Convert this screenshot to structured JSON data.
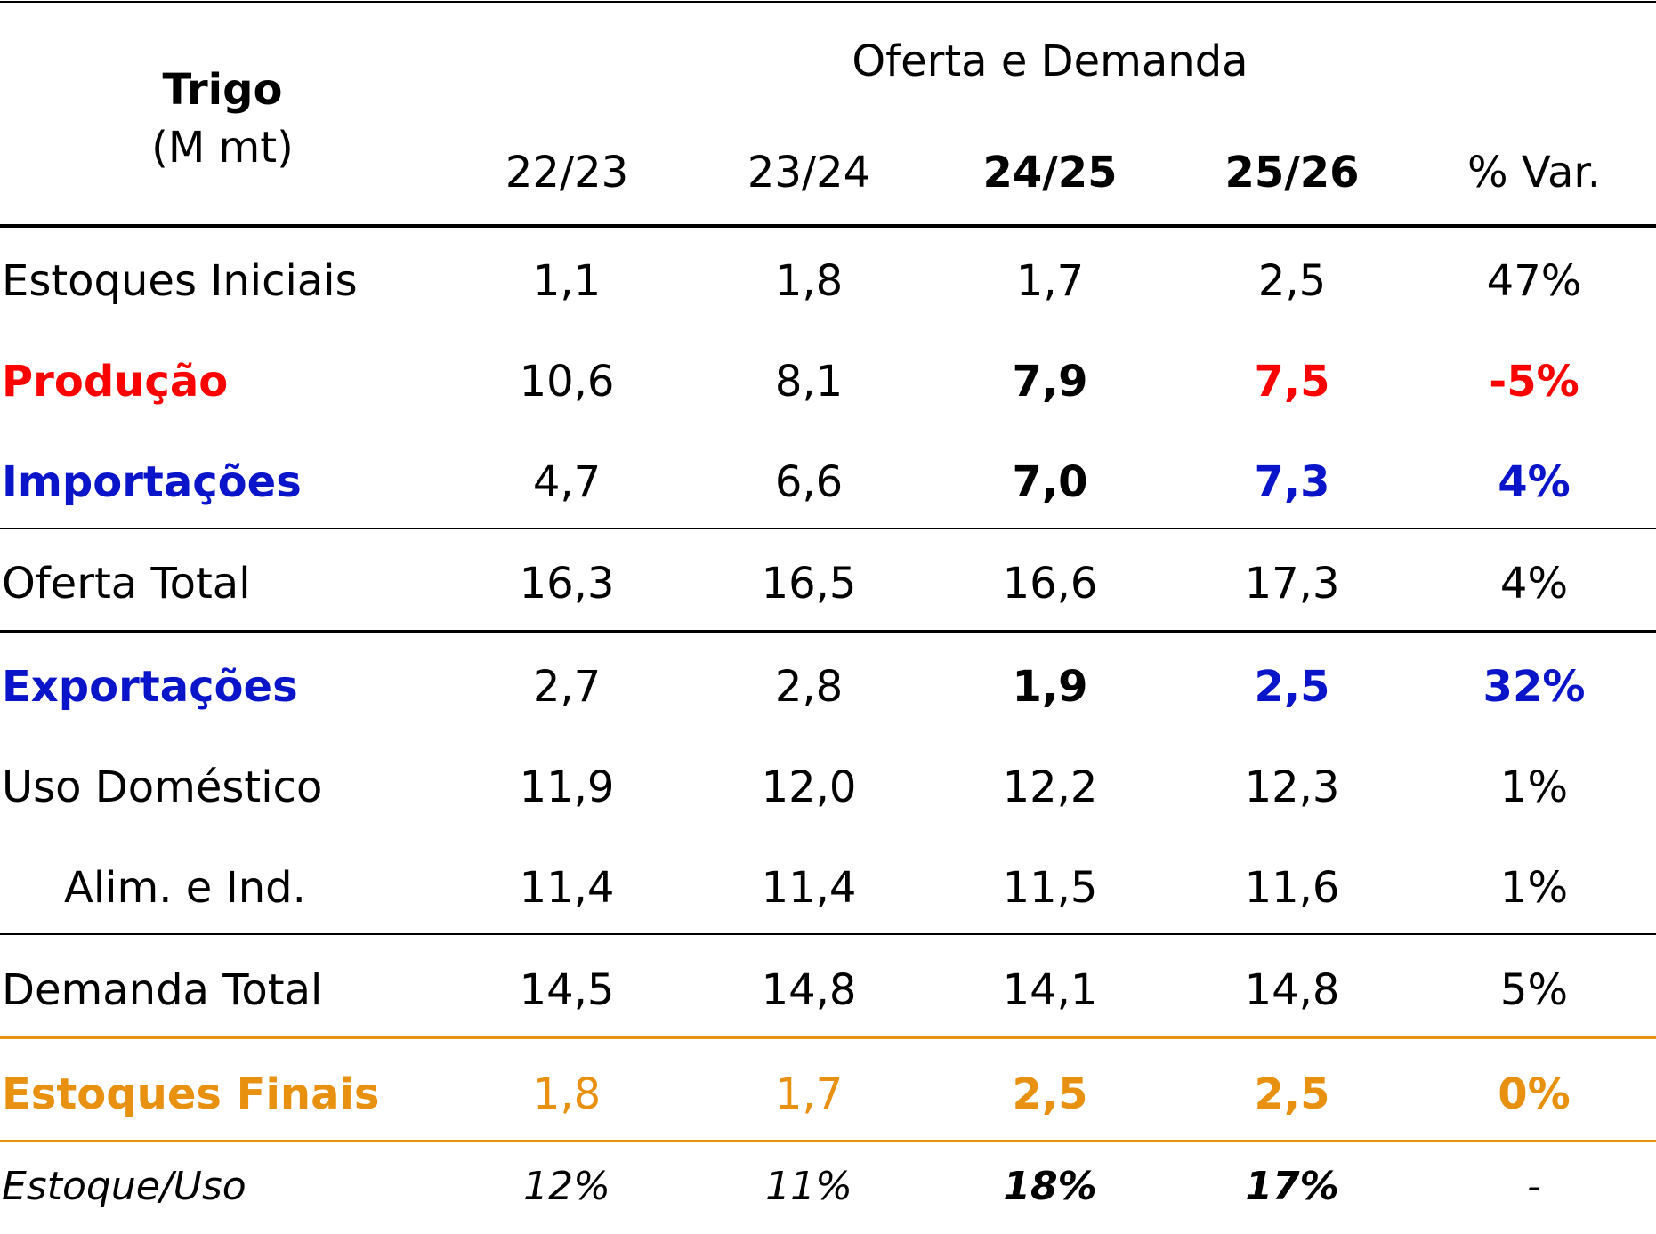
{
  "header": {
    "title": "Trigo",
    "unit": "(M mt)",
    "group_title": "Oferta e Demanda",
    "columns": [
      "22/23",
      "23/24",
      "24/25",
      "25/26",
      "% Var."
    ]
  },
  "table": {
    "rows": [
      {
        "label": "Estoques Iniciais",
        "values": [
          "1,1",
          "1,8",
          "1,7",
          "2,5",
          "47%"
        ]
      },
      {
        "label": "Produção",
        "values": [
          "10,6",
          "8,1",
          "7,9",
          "7,5",
          "-5%"
        ]
      },
      {
        "label": "Importações",
        "values": [
          "4,7",
          "6,6",
          "7,0",
          "7,3",
          "4%"
        ]
      },
      {
        "label": "Oferta Total",
        "values": [
          "16,3",
          "16,5",
          "16,6",
          "17,3",
          "4%"
        ]
      },
      {
        "label": "Exportações",
        "values": [
          "2,7",
          "2,8",
          "1,9",
          "2,5",
          "32%"
        ]
      },
      {
        "label": "Uso Doméstico",
        "values": [
          "11,9",
          "12,0",
          "12,2",
          "12,3",
          "1%"
        ]
      },
      {
        "label": "Alim. e Ind.",
        "values": [
          "11,4",
          "11,4",
          "11,5",
          "11,6",
          "1%"
        ]
      },
      {
        "label": "Demanda Total",
        "values": [
          "14,5",
          "14,8",
          "14,1",
          "14,8",
          "5%"
        ]
      },
      {
        "label": "Estoques Finais",
        "values": [
          "1,8",
          "1,7",
          "2,5",
          "2,5",
          "0%"
        ]
      },
      {
        "label": "Estoque/Uso",
        "values": [
          "12%",
          "11%",
          "18%",
          "17%",
          "-"
        ]
      }
    ]
  }
}
